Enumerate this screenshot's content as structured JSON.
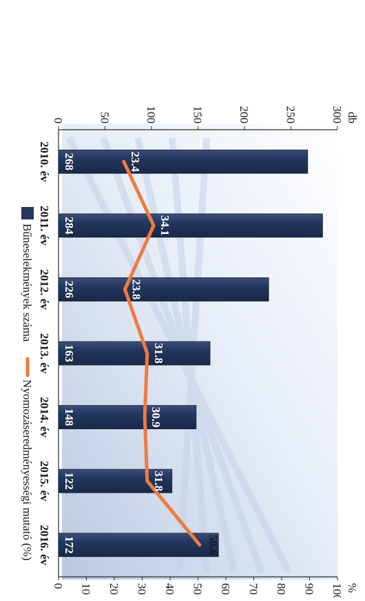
{
  "chart_data": {
    "type": "bar",
    "orientation": "rotated-90-clockwise",
    "categories": [
      "2010. év",
      "2011. év",
      "2012. év",
      "2013. év",
      "2014. év",
      "2015. év",
      "2016. év"
    ],
    "series": [
      {
        "name": "Bűneselekmények száma",
        "type": "bar",
        "axis": "left",
        "color": "#25375f",
        "values": [
          268,
          284,
          226,
          163,
          148,
          122,
          172
        ],
        "value_labels": [
          "268",
          "284",
          "226",
          "163",
          "148",
          "122",
          "172"
        ]
      },
      {
        "name": "Nyomozáseredményességi mutató (%)",
        "type": "line",
        "axis": "right",
        "color": "#f07a41",
        "values": [
          23.4,
          34.1,
          23.8,
          31.8,
          30.9,
          31.8,
          50.6
        ],
        "value_labels": [
          "23.4",
          "34.1",
          "23.8",
          "31.8",
          "30.9",
          "31.8",
          "50.6"
        ]
      }
    ],
    "left_axis": {
      "label": "db",
      "ylim": [
        0,
        300
      ],
      "ticks": [
        0,
        50,
        100,
        150,
        200,
        250,
        300
      ],
      "tick_labels": [
        "0",
        "50",
        "100",
        "150",
        "200",
        "250",
        "300"
      ]
    },
    "right_axis": {
      "label": "%",
      "ylim": [
        0,
        100
      ],
      "ticks": [
        0,
        10,
        20,
        30,
        40,
        50,
        60,
        70,
        80,
        90,
        100
      ],
      "tick_labels": [
        "0",
        "10",
        "20",
        "30",
        "40",
        "50",
        "60",
        "70",
        "80",
        "90",
        "100"
      ]
    },
    "legend": {
      "position": "top",
      "items": [
        "Bűneselekmények száma",
        "Nyomozáseredményességi mutató (%)"
      ]
    },
    "grid": false,
    "background": "blurred photo of a building facade"
  }
}
